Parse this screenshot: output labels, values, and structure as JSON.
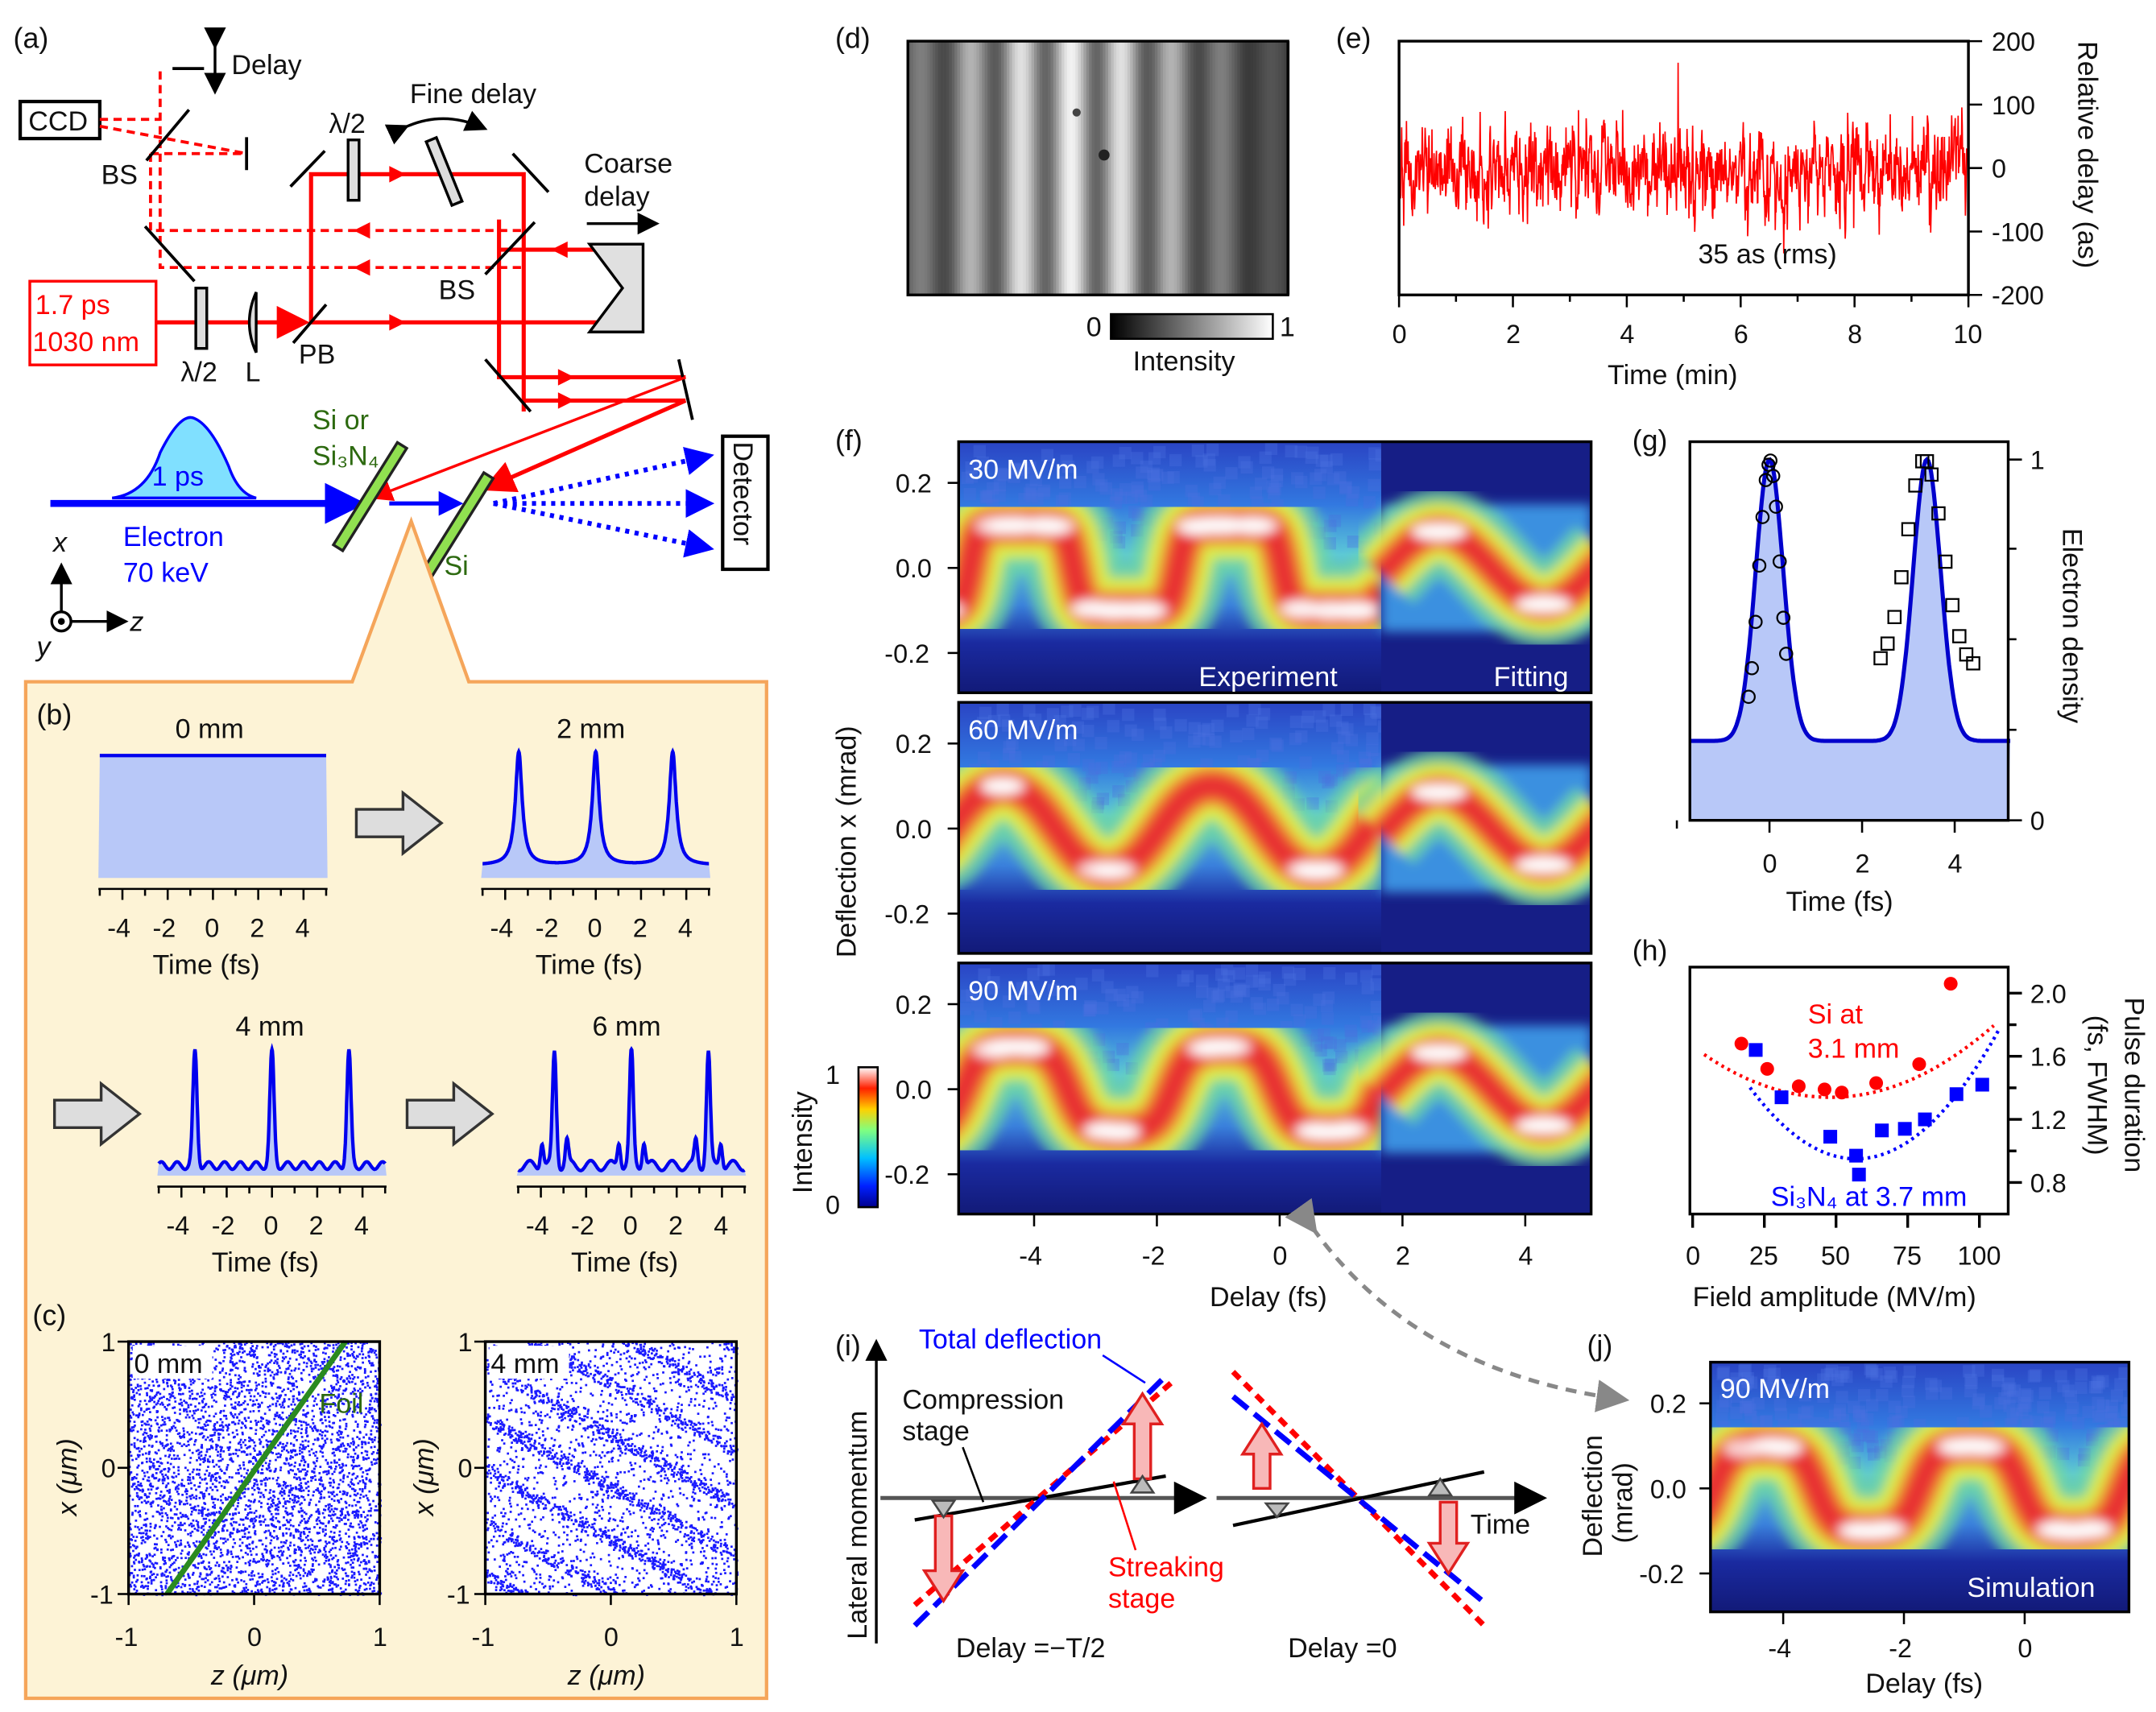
{
  "panels": {
    "a": "(a)",
    "b": "(b)",
    "c": "(c)",
    "d": "(d)",
    "e": "(e)",
    "f": "(f)",
    "g": "(g)",
    "h": "(h)",
    "i": "(i)",
    "j": "(j)"
  },
  "colors": {
    "laser": "#ff0000",
    "electron": "#0000ff",
    "sample": "#2d6a10",
    "inset_fill": "#fdf3d6",
    "inset_border": "#f5a55a",
    "pulse_fill": "#80e0ff",
    "area_fill": "#b8c8f8"
  },
  "a": {
    "delay": "Delay",
    "ccd": "CCD",
    "bs1": "BS",
    "bs2": "BS",
    "fine_delay": "Fine delay",
    "half_wave1": "λ/2",
    "half_wave2": "λ/2",
    "coarse_delay": [
      "Coarse",
      "delay"
    ],
    "laser": [
      "1.7 ps",
      "1030 nm"
    ],
    "lens": "L",
    "pb": "PB",
    "sample1": [
      "Si or",
      "Si₃N₄"
    ],
    "sample2": "Si",
    "pulse": "1 ps",
    "electron": [
      "Electron",
      "70 keV"
    ],
    "detector": "Detector",
    "axes": {
      "x": "x",
      "y": "y",
      "z": "z"
    }
  },
  "b": {
    "plots": [
      {
        "title": "0 mm"
      },
      {
        "title": "2 mm"
      },
      {
        "title": "4 mm"
      },
      {
        "title": "6 mm"
      }
    ],
    "ticks": [
      "-4",
      "-2",
      "0",
      "2",
      "4"
    ],
    "xlabel": "Time (fs)"
  },
  "c": {
    "plots": [
      {
        "label": "0 mm"
      },
      {
        "label": "4 mm"
      }
    ],
    "foil": "Foil",
    "xticks": [
      "-1",
      "0",
      "1"
    ],
    "yticks": [
      "1",
      "0",
      "-1"
    ],
    "xlabel": "z (μm)",
    "ylabel": "x (μm)"
  },
  "d": {
    "cb_min": "0",
    "cb_max": "1",
    "cb_label": "Intensity"
  },
  "e": {
    "xticks": [
      "0",
      "2",
      "4",
      "6",
      "8",
      "10"
    ],
    "yticks": [
      "200",
      "100",
      "0",
      "-100",
      "-200"
    ],
    "xlabel": "Time (min)",
    "ylabel": "Relative delay (as)",
    "annotation": "35 as (rms)"
  },
  "f": {
    "panels": [
      {
        "field": "30 MV/m"
      },
      {
        "field": "60 MV/m"
      },
      {
        "field": "90 MV/m"
      }
    ],
    "experiment": "Experiment",
    "fitting": "Fitting",
    "yticks": [
      "0.2",
      "0.0",
      "-0.2"
    ],
    "xticks": [
      "-4",
      "-2",
      "0",
      "2",
      "4"
    ],
    "xlabel": "Delay (fs)",
    "ylabel": "Deflection x (mrad)",
    "cb_label": "Intensity",
    "cb_ticks": [
      "1",
      "0"
    ]
  },
  "g": {
    "xticks": [
      "0",
      "2",
      "4"
    ],
    "yticks": [
      "1",
      "0"
    ],
    "xlabel": "Time (fs)",
    "ylabel": "Electron density"
  },
  "chart_data": {
    "type": "scatter",
    "xlabel": "Field amplitude (MV/m)",
    "ylabel": [
      "Pulse duration",
      "(fs, FWHM)"
    ],
    "xlim": [
      0,
      110
    ],
    "ylim": [
      0.65,
      2.2
    ],
    "xticks": [
      "0",
      "25",
      "50",
      "75",
      "100"
    ],
    "yticks": [
      "2.0",
      "1.6",
      "1.2",
      "0.8"
    ],
    "series": [
      {
        "name": "Si at 3.1 mm",
        "label": [
          "Si at",
          "3.1 mm"
        ],
        "color": "#ff0000",
        "marker": "circle",
        "x": [
          17,
          26,
          37,
          46,
          52,
          64,
          79,
          90
        ],
        "y": [
          1.68,
          1.52,
          1.41,
          1.39,
          1.37,
          1.43,
          1.55,
          2.06
        ],
        "fit": {
          "a": 0.00014,
          "x0": 48,
          "y0": 1.34
        }
      },
      {
        "name": "Si₃N₄ at 3.7 mm",
        "label": [
          "Si₃N₄ at 3.7 mm"
        ],
        "color": "#0000ff",
        "marker": "square",
        "x": [
          22,
          31,
          48,
          57,
          58,
          66,
          74,
          81,
          92,
          101
        ],
        "y": [
          1.64,
          1.34,
          1.09,
          0.97,
          0.85,
          1.13,
          1.14,
          1.2,
          1.36,
          1.42
        ],
        "fit": {
          "a": 0.00033,
          "x0": 57,
          "y0": 0.95
        }
      }
    ]
  },
  "i": {
    "total": "Total deflection",
    "compression": [
      "Compression",
      "stage"
    ],
    "streaking": [
      "Streaking",
      "stage"
    ],
    "ylabel": "Lateral momentum",
    "time": "Time",
    "delay_left": "Delay =−T/2",
    "delay_right": "Delay =0"
  },
  "j": {
    "field": "90 MV/m",
    "simulation": "Simulation",
    "xticks": [
      "-4",
      "-2",
      "0"
    ],
    "yticks": [
      "0.2",
      "0.0",
      "-0.2"
    ],
    "xlabel": "Delay (fs)",
    "ylabel": [
      "Deflection",
      "(mrad)"
    ]
  }
}
